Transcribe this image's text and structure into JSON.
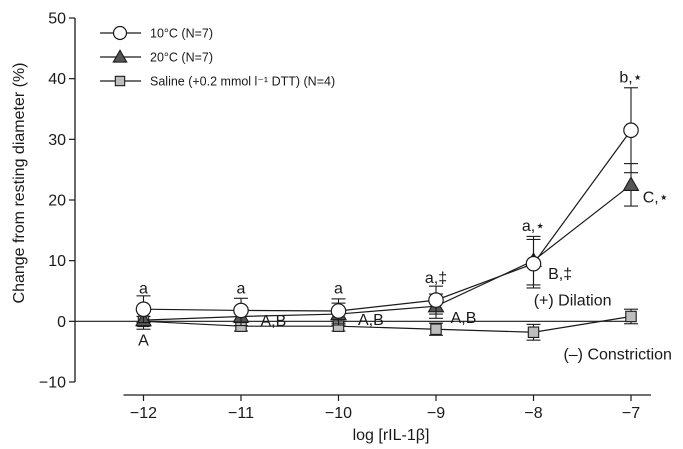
{
  "chart_data": {
    "type": "line",
    "xlabel": "log [rIL-1β]",
    "ylabel": "Change from resting diameter (%)",
    "x": [
      -12,
      -11,
      -10,
      -9,
      -8,
      -7
    ],
    "xlim": [
      -12.6,
      -6.6
    ],
    "ylim": [
      -10,
      50
    ],
    "y_ticks": [
      -10,
      0,
      10,
      20,
      30,
      40,
      50
    ],
    "x_tick_labels": [
      "−12",
      "−11",
      "−10",
      "−9",
      "−8",
      "−7"
    ],
    "y_tick_labels": [
      "−10",
      "0",
      "10",
      "20",
      "30",
      "40",
      "50"
    ],
    "grid": false,
    "legend_position": "top-left",
    "series": [
      {
        "name": "10°C",
        "n_label": "(N=7)",
        "marker": "circle",
        "fill": "#ffffff",
        "values": [
          2.0,
          1.8,
          1.7,
          3.5,
          9.5,
          31.5
        ],
        "errors": [
          2.2,
          2.0,
          2.0,
          2.3,
          4.0,
          7.0
        ]
      },
      {
        "name": "20°C",
        "n_label": "(N=7)",
        "marker": "triangle",
        "fill": "#555555",
        "values": [
          0.2,
          0.8,
          1.2,
          2.5,
          10.0,
          22.5
        ],
        "errors": [
          1.5,
          1.5,
          1.8,
          2.0,
          4.0,
          3.5
        ]
      },
      {
        "name": "Saline (+0.2 mmol l⁻¹ DTT)",
        "n_label": "(N=4)",
        "marker": "square",
        "fill": "#bdbdbd",
        "values": [
          0.0,
          -0.8,
          -0.8,
          -1.3,
          -1.8,
          0.8
        ],
        "errors": [
          0.8,
          0.8,
          0.8,
          1.0,
          1.3,
          1.2
        ]
      }
    ],
    "annotations": [
      {
        "text": "a",
        "x": -12,
        "y": 4.6,
        "anchor": "middle"
      },
      {
        "text": "a",
        "x": -11,
        "y": 4.6,
        "anchor": "middle"
      },
      {
        "text": "a",
        "x": -10,
        "y": 4.6,
        "anchor": "middle"
      },
      {
        "text": "a,‡",
        "x": -9,
        "y": 6.3,
        "anchor": "middle"
      },
      {
        "text": "a,⋆",
        "x": -8,
        "y": 14.9,
        "anchor": "middle"
      },
      {
        "text": "b,⋆",
        "x": -7,
        "y": 39.4,
        "anchor": "middle"
      },
      {
        "text": "A",
        "x": -12,
        "y": -4.0,
        "anchor": "middle"
      },
      {
        "text": "A,B",
        "x": -10.8,
        "y": -0.8,
        "anchor": "start"
      },
      {
        "text": "A,B",
        "x": -9.8,
        "y": -0.6,
        "anchor": "start"
      },
      {
        "text": "A,B",
        "x": -8.85,
        "y": -0.3,
        "anchor": "start"
      },
      {
        "text": "B,‡",
        "x": -7.85,
        "y": 7.0,
        "anchor": "start"
      },
      {
        "text": "C,⋆",
        "x": -6.88,
        "y": 19.6,
        "anchor": "start"
      },
      {
        "text": "(+) Dilation",
        "x": -7.2,
        "y": 2.6,
        "anchor": "end"
      },
      {
        "text": "(–) Constriction",
        "x": -6.58,
        "y": -6.3,
        "anchor": "end"
      }
    ]
  }
}
